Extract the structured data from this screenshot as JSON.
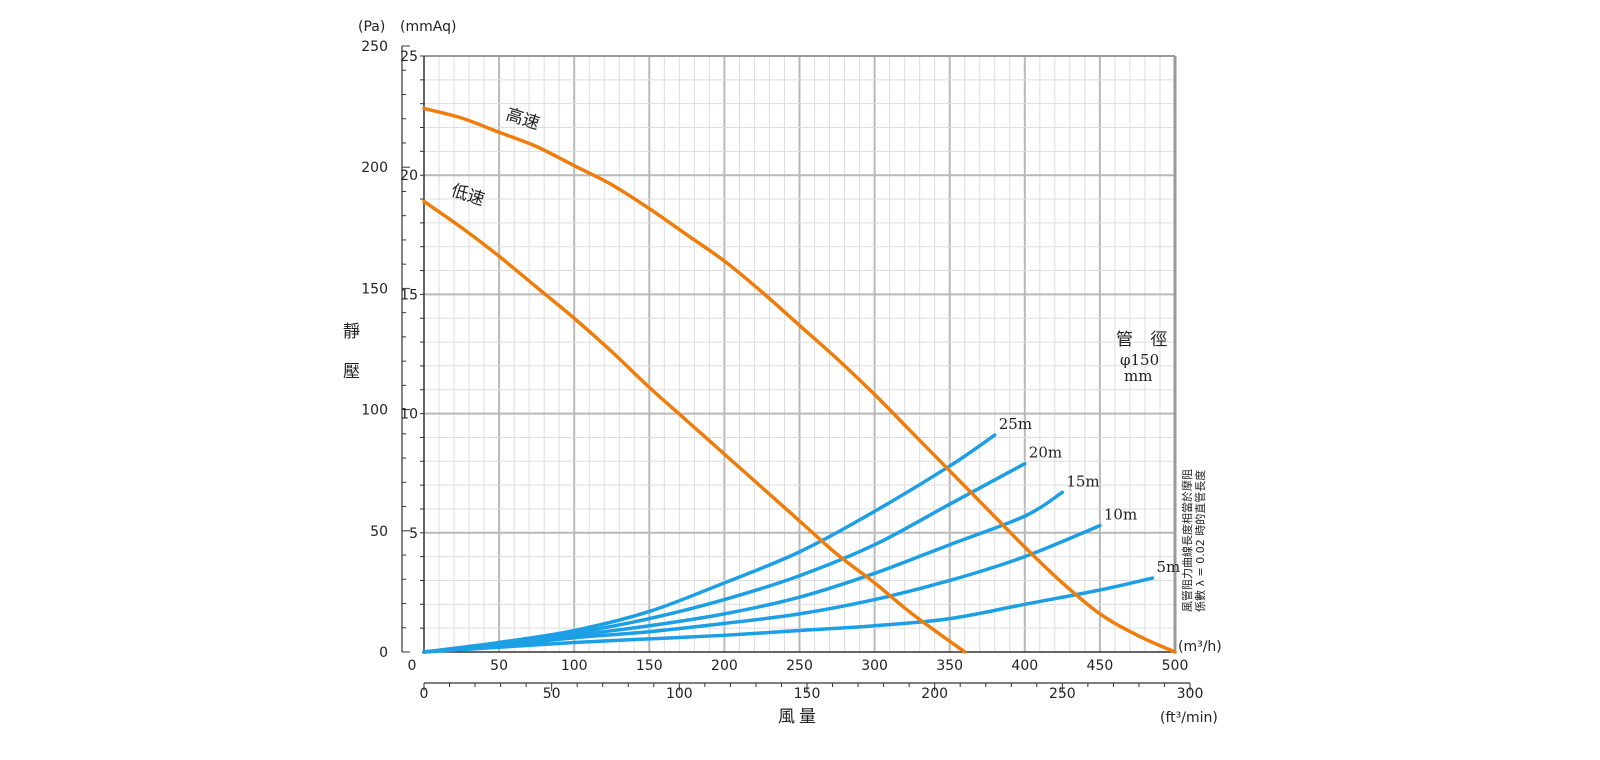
{
  "chart_data": {
    "type": "line",
    "title": "",
    "y_unit_pa": "(Pa)",
    "y_unit_mmaq": "(mmAq)",
    "ylabel": [
      "靜",
      "壓"
    ],
    "xlabel": "風量",
    "x_unit_m3h": "(m³/h)",
    "x_unit_ft3min": "(ft³/min)",
    "xlim": [
      0,
      500
    ],
    "ylim": [
      0,
      25
    ],
    "x_ticks_m3h": [
      0,
      50,
      100,
      150,
      200,
      250,
      300,
      350,
      400,
      450,
      500
    ],
    "x_ticks_ft3min": [
      0,
      50,
      100,
      150,
      200,
      250,
      300
    ],
    "y_ticks_mmaq": [
      5,
      10,
      15,
      20,
      25
    ],
    "y_ticks_pa": [
      0,
      50,
      100,
      150,
      200,
      250
    ],
    "pipe_label": "管 徑",
    "pipe_size": "φ150",
    "pipe_unit": "mm",
    "side_note": [
      "風管阻力曲線長度相當於摩阻",
      "係數 λ = 0.02 時的直管長度"
    ],
    "colors": {
      "fan": "#ee7d0c",
      "duct": "#1c9fe4",
      "grid_major": "#b9b9b9",
      "grid_minor": "#dddddd"
    },
    "fan_series": [
      {
        "name": "高速",
        "x": [
          0,
          25,
          50,
          75,
          100,
          125,
          150,
          175,
          200,
          225,
          250,
          275,
          300,
          325,
          350,
          375,
          400,
          425,
          450,
          475,
          500
        ],
        "y": [
          22.8,
          22.4,
          21.8,
          21.2,
          20.4,
          19.6,
          18.6,
          17.5,
          16.4,
          15.1,
          13.7,
          12.3,
          10.8,
          9.2,
          7.6,
          6.0,
          4.4,
          2.9,
          1.6,
          0.7,
          0
        ]
      },
      {
        "name": "低速",
        "x": [
          0,
          25,
          50,
          75,
          100,
          125,
          150,
          175,
          200,
          225,
          250,
          275,
          300,
          325,
          360
        ],
        "y": [
          18.9,
          17.8,
          16.6,
          15.3,
          14.0,
          12.6,
          11.1,
          9.7,
          8.3,
          6.9,
          5.5,
          4.1,
          2.9,
          1.6,
          0
        ]
      }
    ],
    "duct_series": [
      {
        "name": "25m",
        "x": [
          0,
          50,
          100,
          150,
          200,
          250,
          300,
          350,
          380
        ],
        "y": [
          0,
          0.4,
          0.9,
          1.7,
          2.9,
          4.2,
          5.9,
          7.8,
          9.1
        ]
      },
      {
        "name": "20m",
        "x": [
          0,
          50,
          100,
          150,
          200,
          250,
          300,
          350,
          400
        ],
        "y": [
          0,
          0.35,
          0.8,
          1.4,
          2.2,
          3.2,
          4.5,
          6.2,
          7.9
        ]
      },
      {
        "name": "15m",
        "x": [
          0,
          50,
          100,
          150,
          200,
          250,
          300,
          350,
          400,
          425
        ],
        "y": [
          0,
          0.3,
          0.7,
          1.1,
          1.6,
          2.3,
          3.3,
          4.5,
          5.7,
          6.7
        ]
      },
      {
        "name": "10m",
        "x": [
          0,
          50,
          100,
          150,
          200,
          250,
          300,
          350,
          400,
          450
        ],
        "y": [
          0,
          0.25,
          0.6,
          0.85,
          1.2,
          1.6,
          2.2,
          3.0,
          4.0,
          5.3
        ]
      },
      {
        "name": "5m",
        "x": [
          0,
          50,
          100,
          150,
          200,
          250,
          300,
          350,
          400,
          450,
          485
        ],
        "y": [
          0,
          0.2,
          0.4,
          0.55,
          0.7,
          0.9,
          1.1,
          1.4,
          2.0,
          2.6,
          3.1
        ]
      }
    ]
  }
}
